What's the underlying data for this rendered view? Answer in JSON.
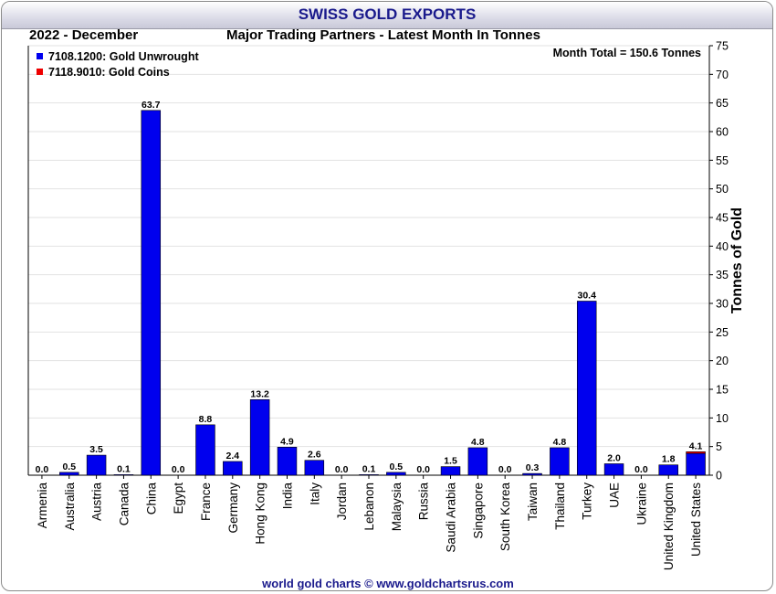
{
  "header": {
    "title": "SWISS GOLD EXPORTS",
    "period": "2022 - December",
    "subtitle": "Major Trading Partners - Latest Month In Tonnes",
    "month_total": "Month Total = 150.6 Tonnes",
    "footer": "world gold charts © www.goldchartsrus.com"
  },
  "colors": {
    "unwrought": "#0000ee",
    "coins": "#ee0000",
    "grid": "#e2e2e2"
  },
  "chart_data": {
    "type": "bar",
    "stacked": true,
    "ylabel": "Tonnes of Gold",
    "ylim": [
      0,
      75
    ],
    "yticks": [
      0,
      5,
      10,
      15,
      20,
      25,
      30,
      35,
      40,
      45,
      50,
      55,
      60,
      65,
      70,
      75
    ],
    "grid": true,
    "legend_position": "top-left",
    "y_axis_side": "right",
    "categories": [
      "Armenia",
      "Australia",
      "Austria",
      "Canada",
      "China",
      "Egypt",
      "France",
      "Germany",
      "Hong Kong",
      "India",
      "Italy",
      "Jordan",
      "Lebanon",
      "Malaysia",
      "Russia",
      "Saudi Arabia",
      "Singapore",
      "South Korea",
      "Taiwan",
      "Thailand",
      "Turkey",
      "UAE",
      "Ukraine",
      "United Kingdom",
      "United States"
    ],
    "series": [
      {
        "name": "7108.1200: Gold Unwrought",
        "color": "#0000ee",
        "values": [
          0.0,
          0.5,
          3.5,
          0.1,
          63.7,
          0.0,
          8.8,
          2.4,
          13.2,
          4.9,
          2.6,
          0.0,
          0.1,
          0.5,
          0.0,
          1.5,
          4.8,
          0.0,
          0.3,
          4.8,
          30.4,
          2.0,
          0.0,
          1.8,
          3.8
        ]
      },
      {
        "name": "7118.9010: Gold Coins",
        "color": "#ee0000",
        "values": [
          0,
          0,
          0,
          0,
          0,
          0,
          0,
          0,
          0,
          0,
          0,
          0,
          0,
          0,
          0,
          0,
          0,
          0,
          0,
          0,
          0,
          0,
          0,
          0,
          0.3
        ]
      }
    ],
    "data_labels": [
      "0.0",
      "0.5",
      "3.5",
      "0.1",
      "63.7",
      "0.0",
      "8.8",
      "2.4",
      "13.2",
      "4.9",
      "2.6",
      "0.0",
      "0.1",
      "0.5",
      "0.0",
      "1.5",
      "4.8",
      "0.0",
      "0.3",
      "4.8",
      "30.4",
      "2.0",
      "0.0",
      "1.8",
      "4.1"
    ]
  }
}
